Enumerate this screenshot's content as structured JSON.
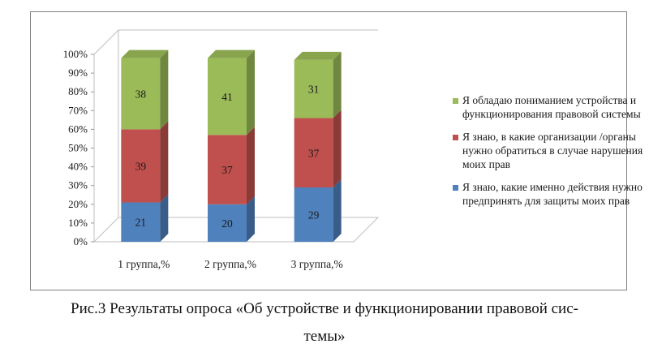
{
  "chart_data": {
    "type": "bar",
    "stacked": true,
    "three_d": true,
    "categories": [
      "1 группа,%",
      "2 группа,%",
      "3 группа,%"
    ],
    "series": [
      {
        "name": "Я знаю, какие именно действия нужно предпринять для защиты моих прав",
        "values": [
          21,
          20,
          29
        ],
        "color": "#4f81bd"
      },
      {
        "name": "Я знаю, в какие организации /органы нужно обратиться в случае нарушения моих прав",
        "values": [
          39,
          37,
          37
        ],
        "color": "#c0504d"
      },
      {
        "name": "Я обладаю пониманием устройства и функционирования правовой системы",
        "values": [
          38,
          41,
          31
        ],
        "color": "#9bbb59"
      }
    ],
    "yticks": [
      "0%",
      "10%",
      "20%",
      "30%",
      "40%",
      "50%",
      "60%",
      "70%",
      "80%",
      "90%",
      "100%"
    ],
    "ylim": [
      0,
      100
    ],
    "grid": false,
    "legend_position": "right"
  },
  "caption": {
    "line1": "Рис.3 Результаты опроса «Об устройстве и функционировании правовой сис-",
    "line2": "темы»"
  }
}
